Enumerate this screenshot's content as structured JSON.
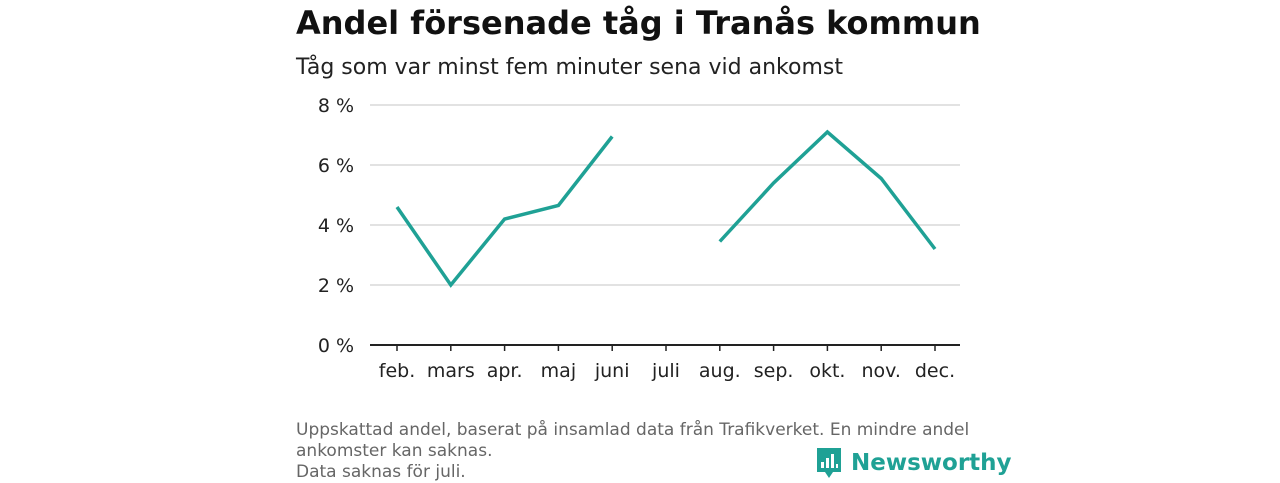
{
  "header": {
    "title": "Andel försenade tåg i Tranås kommun",
    "subtitle": "Tåg som var minst fem minuter sena vid ankomst"
  },
  "footer": {
    "note_line1": "Uppskattad andel, baserat på insamlad data från Trafikverket. En mindre andel",
    "note_line2": "ankomster kan saknas.",
    "note_line3": "Data saknas för juli.",
    "brand": "Newsworthy"
  },
  "chart_data": {
    "type": "line",
    "title": "Andel försenade tåg i Tranås kommun",
    "subtitle": "Tåg som var minst fem minuter sena vid ankomst",
    "categories": [
      "feb.",
      "mars",
      "apr.",
      "maj",
      "juni",
      "juli",
      "aug.",
      "sep.",
      "okt.",
      "nov.",
      "dec."
    ],
    "series": [
      {
        "values": [
          4.6,
          2.0,
          4.2,
          4.65,
          6.95,
          null,
          3.45,
          5.4,
          7.1,
          5.55,
          3.2
        ],
        "color": "#1fa195"
      }
    ],
    "y_ticks": [
      "0 %",
      "2 %",
      "4 %",
      "6 %",
      "8 %"
    ],
    "ylim": [
      0,
      8
    ],
    "grid": true
  }
}
